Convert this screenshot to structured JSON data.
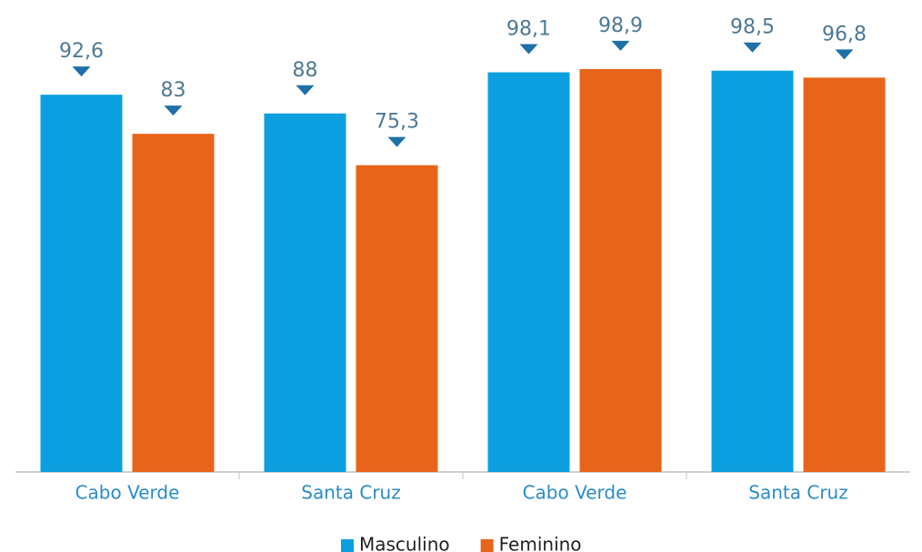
{
  "chart_data": {
    "type": "bar",
    "categories": [
      "Cabo Verde",
      "Santa Cruz",
      "Cabo Verde",
      "Santa Cruz"
    ],
    "series": [
      {
        "name": "Masculino",
        "color": "#0b9fe0",
        "values": [
          92.6,
          88,
          98.1,
          98.5
        ],
        "value_labels": [
          "92,6",
          "88",
          "98,1",
          "98,5"
        ]
      },
      {
        "name": "Feminino",
        "color": "#e8641a",
        "values": [
          83,
          75.3,
          98.9,
          96.8
        ],
        "value_labels": [
          "83",
          "75,3",
          "98,9",
          "96,8"
        ]
      }
    ],
    "ylim": [
      0,
      100
    ],
    "legend": "bottom"
  }
}
